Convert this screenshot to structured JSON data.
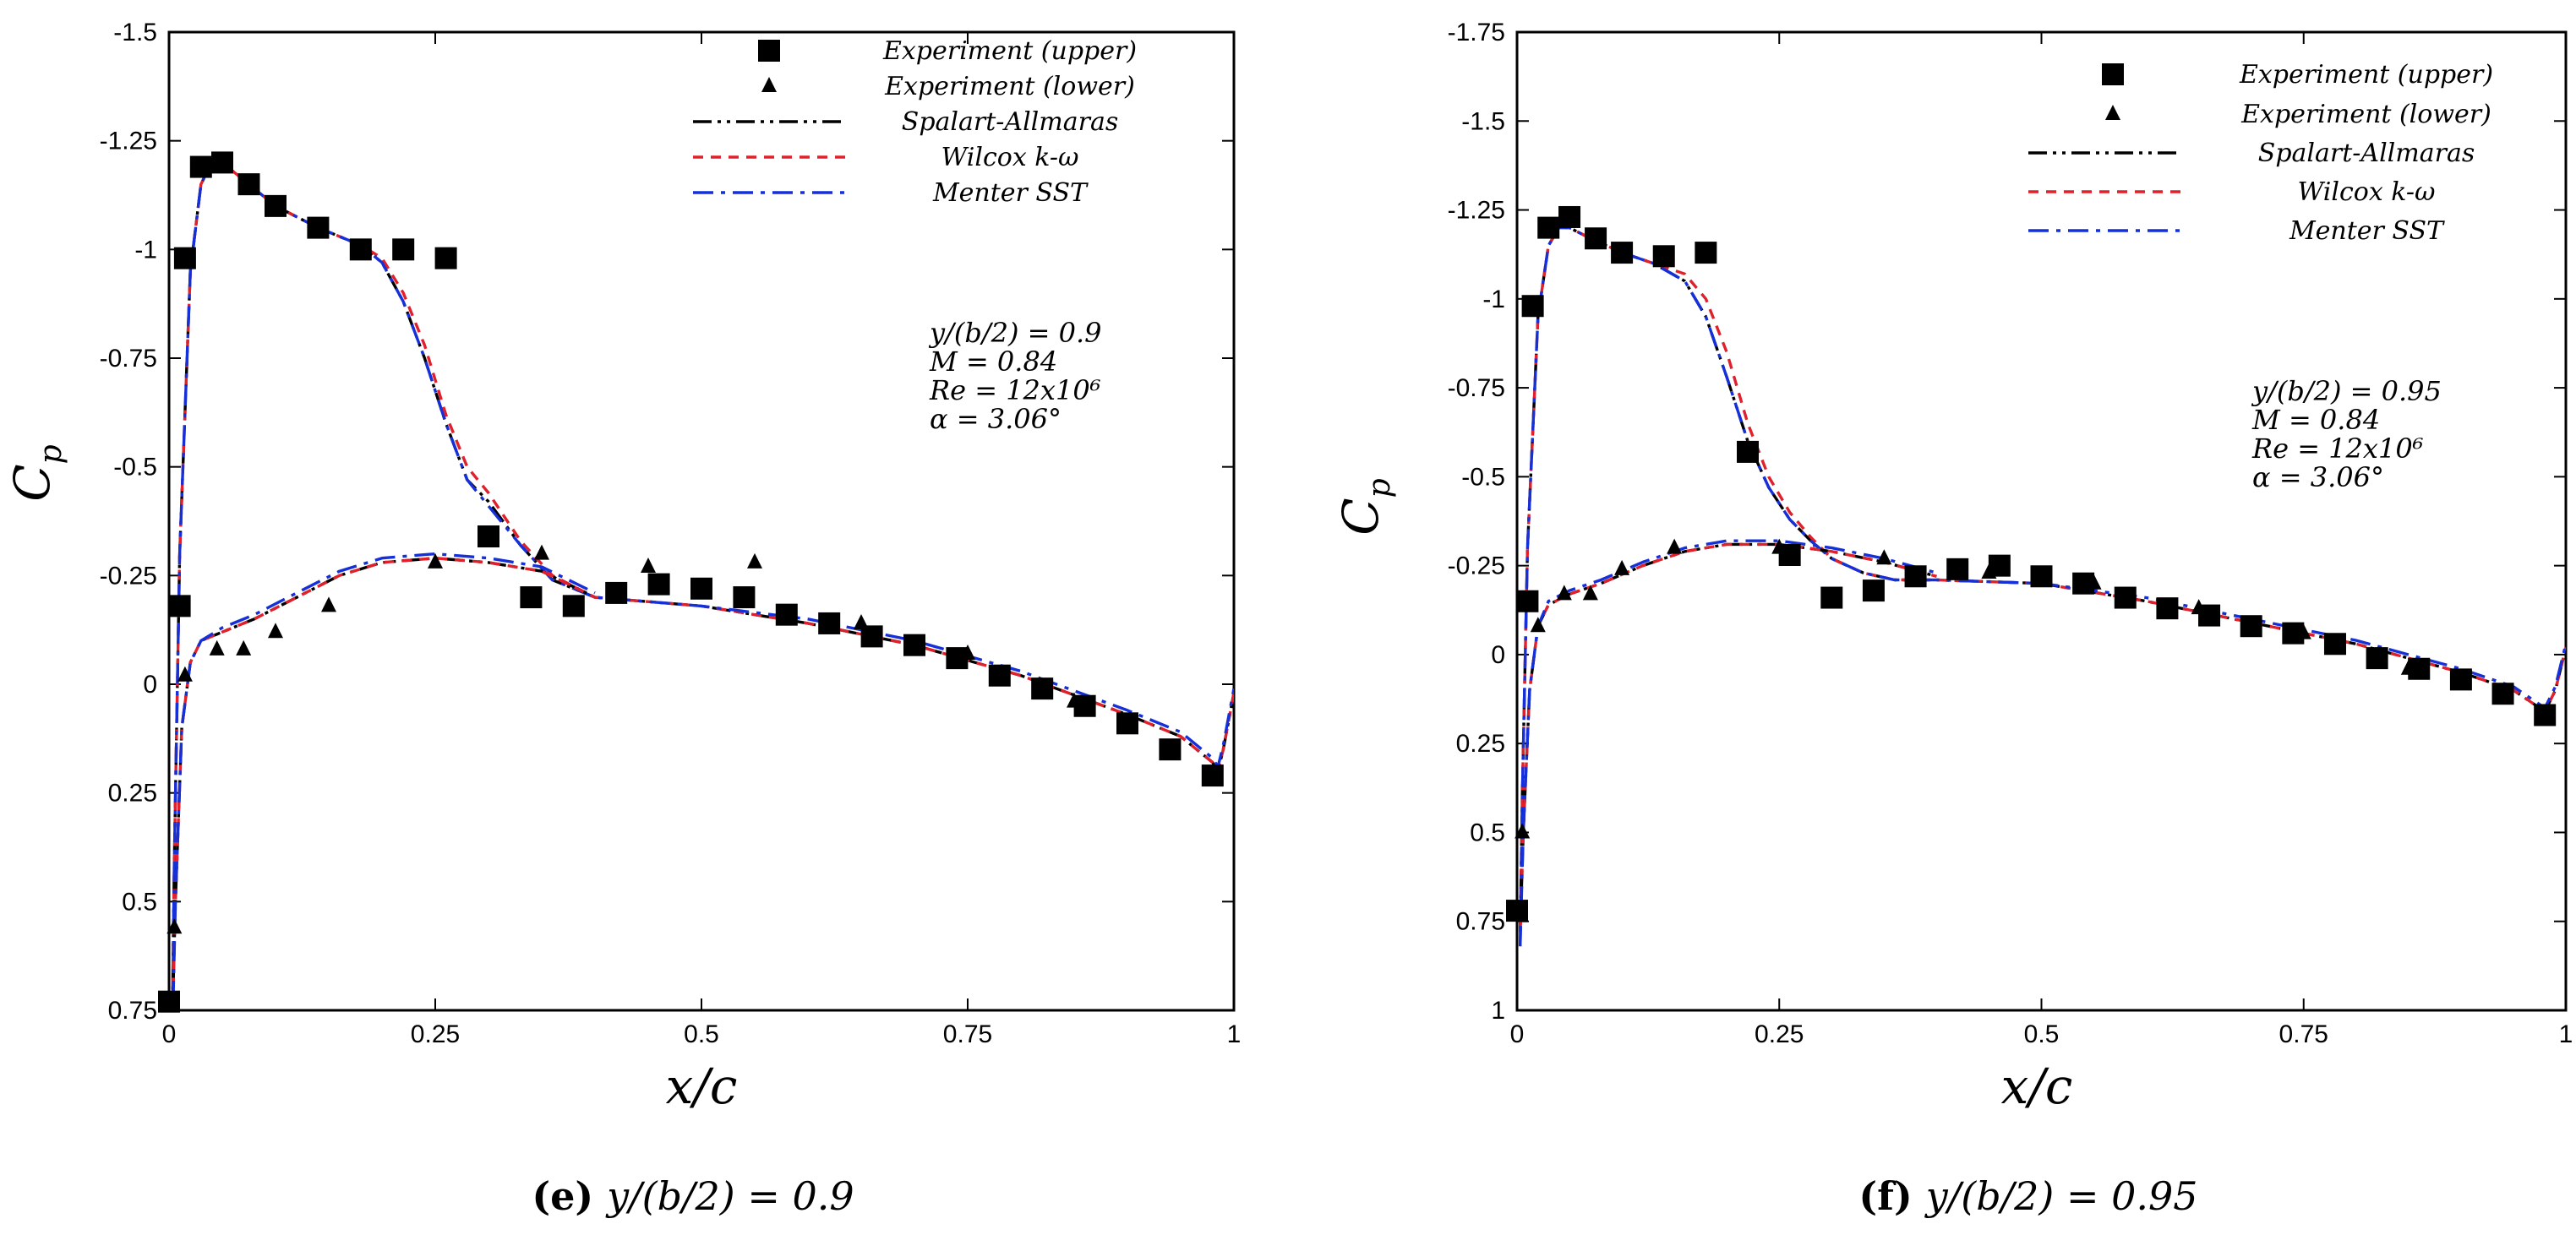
{
  "chart_data": [
    {
      "type": "scatter",
      "panel": "e",
      "caption": {
        "label": "(e)",
        "text": "y/(b/2) = 0.9"
      },
      "xlabel": "x/c",
      "ylabel": "C_p",
      "xlim": [
        0,
        1
      ],
      "ylim": [
        -1.5,
        0.75
      ],
      "y_inverted": true,
      "xticks": [
        0,
        0.25,
        0.5,
        0.75,
        1
      ],
      "xtick_labels": [
        "0",
        "0.25",
        "0.5",
        "0.75",
        "1"
      ],
      "yticks": [
        -1.5,
        -1.25,
        -1,
        -0.75,
        -0.5,
        -0.25,
        0,
        0.25,
        0.5,
        0.75
      ],
      "ytick_labels": [
        "-1.5",
        "-1.25",
        "-1",
        "-0.75",
        "-0.5",
        "-0.25",
        "0",
        "0.25",
        "0.5",
        "0.75"
      ],
      "annotation": [
        "y/(b/2) = 0.9",
        "M = 0.84",
        "Re = 12x10⁶",
        "α = 3.06°"
      ],
      "series": [
        {
          "name": "Experiment (upper)",
          "kind": "marker-square",
          "color": "#000000",
          "x": [
            0,
            0.01,
            0.015,
            0.03,
            0.05,
            0.075,
            0.1,
            0.14,
            0.18,
            0.22,
            0.26,
            0.3,
            0.34,
            0.38,
            0.42,
            0.46,
            0.5,
            0.54,
            0.58,
            0.62,
            0.66,
            0.7,
            0.74,
            0.78,
            0.82,
            0.86,
            0.9,
            0.94,
            0.98
          ],
          "y": [
            0.73,
            -0.18,
            -0.98,
            -1.19,
            -1.2,
            -1.15,
            -1.1,
            -1.05,
            -1.0,
            -1.0,
            -0.98,
            -0.34,
            -0.2,
            -0.18,
            -0.21,
            -0.23,
            -0.22,
            -0.2,
            -0.16,
            -0.14,
            -0.11,
            -0.09,
            -0.06,
            -0.02,
            0.01,
            0.05,
            0.09,
            0.15,
            0.21
          ]
        },
        {
          "name": "Experiment (lower)",
          "kind": "marker-triangle",
          "color": "#000000",
          "x": [
            0.005,
            0.015,
            0.045,
            0.07,
            0.1,
            0.15,
            0.25,
            0.35,
            0.45,
            0.55,
            0.65,
            0.75,
            0.85
          ],
          "y": [
            0.56,
            -0.02,
            -0.08,
            -0.08,
            -0.12,
            -0.18,
            -0.28,
            -0.3,
            -0.27,
            -0.28,
            -0.14,
            -0.07,
            0.04
          ]
        },
        {
          "name": "Spalart-Allmaras",
          "kind": "line",
          "color": "#000000",
          "dash": "dashdotdot",
          "x": [
            0.003,
            0.005,
            0.01,
            0.02,
            0.03,
            0.04,
            0.05,
            0.07,
            0.1,
            0.14,
            0.18,
            0.2,
            0.22,
            0.24,
            0.26,
            0.28,
            0.3,
            0.33,
            0.36,
            0.4,
            0.5,
            0.6,
            0.7,
            0.8,
            0.9,
            0.95,
            0.98,
            0.985,
            0.99,
            1.0
          ],
          "y": [
            0.78,
            0.4,
            -0.3,
            -0.95,
            -1.15,
            -1.2,
            -1.2,
            -1.16,
            -1.1,
            -1.05,
            -1.01,
            -0.97,
            -0.88,
            -0.75,
            -0.6,
            -0.47,
            -0.42,
            -0.32,
            -0.24,
            -0.2,
            -0.18,
            -0.14,
            -0.09,
            -0.02,
            0.07,
            0.12,
            0.18,
            0.2,
            0.15,
            0.02
          ]
        },
        {
          "name": "Wilcox k-ω",
          "kind": "line",
          "color": "#e0202a",
          "dash": "dashed",
          "x": [
            0.003,
            0.005,
            0.01,
            0.02,
            0.03,
            0.04,
            0.05,
            0.07,
            0.1,
            0.14,
            0.18,
            0.2,
            0.22,
            0.24,
            0.26,
            0.28,
            0.3,
            0.33,
            0.36,
            0.4,
            0.5,
            0.6,
            0.7,
            0.8,
            0.9,
            0.95,
            0.98,
            0.985,
            0.99,
            1.0
          ],
          "y": [
            0.78,
            0.4,
            -0.3,
            -0.95,
            -1.15,
            -1.2,
            -1.2,
            -1.16,
            -1.1,
            -1.05,
            -1.01,
            -0.98,
            -0.9,
            -0.78,
            -0.62,
            -0.5,
            -0.44,
            -0.33,
            -0.25,
            -0.2,
            -0.18,
            -0.14,
            -0.09,
            -0.02,
            0.07,
            0.12,
            0.18,
            0.2,
            0.15,
            0.02
          ]
        },
        {
          "name": "Menter SST",
          "kind": "line",
          "color": "#1530d8",
          "dash": "dashdot",
          "x": [
            0.003,
            0.005,
            0.01,
            0.02,
            0.03,
            0.04,
            0.05,
            0.07,
            0.1,
            0.14,
            0.18,
            0.2,
            0.22,
            0.24,
            0.26,
            0.28,
            0.3,
            0.33,
            0.36,
            0.4,
            0.5,
            0.6,
            0.7,
            0.8,
            0.9,
            0.95,
            0.98,
            0.985,
            0.99,
            1.0
          ],
          "y": [
            0.82,
            0.4,
            -0.3,
            -0.95,
            -1.15,
            -1.2,
            -1.2,
            -1.16,
            -1.1,
            -1.05,
            -1.01,
            -0.97,
            -0.88,
            -0.75,
            -0.6,
            -0.47,
            -0.41,
            -0.32,
            -0.24,
            -0.2,
            -0.18,
            -0.15,
            -0.1,
            -0.03,
            0.06,
            0.11,
            0.17,
            0.19,
            0.14,
            0.01
          ]
        },
        {
          "name": "Spalart-Allmaras (lower)",
          "kind": "line",
          "color": "#000000",
          "dash": "dashdotdot",
          "x": [
            0.003,
            0.006,
            0.012,
            0.02,
            0.03,
            0.05,
            0.08,
            0.12,
            0.16,
            0.2,
            0.25,
            0.3,
            0.35,
            0.4
          ],
          "y": [
            0.78,
            0.5,
            0.1,
            -0.05,
            -0.1,
            -0.12,
            -0.15,
            -0.2,
            -0.25,
            -0.28,
            -0.29,
            -0.28,
            -0.26,
            -0.2
          ]
        },
        {
          "name": "Wilcox k-ω (lower)",
          "kind": "line",
          "color": "#e0202a",
          "dash": "dashed",
          "x": [
            0.003,
            0.006,
            0.012,
            0.02,
            0.03,
            0.05,
            0.08,
            0.12,
            0.16,
            0.2,
            0.25,
            0.3,
            0.35,
            0.4
          ],
          "y": [
            0.78,
            0.5,
            0.1,
            -0.05,
            -0.1,
            -0.12,
            -0.15,
            -0.2,
            -0.25,
            -0.28,
            -0.29,
            -0.28,
            -0.26,
            -0.2
          ]
        },
        {
          "name": "Menter SST (lower)",
          "kind": "line",
          "color": "#1530d8",
          "dash": "dashdot",
          "x": [
            0.003,
            0.006,
            0.012,
            0.02,
            0.03,
            0.05,
            0.08,
            0.12,
            0.16,
            0.2,
            0.25,
            0.3,
            0.35,
            0.4
          ],
          "y": [
            0.82,
            0.5,
            0.1,
            -0.05,
            -0.1,
            -0.13,
            -0.16,
            -0.21,
            -0.26,
            -0.29,
            -0.3,
            -0.29,
            -0.27,
            -0.21
          ]
        }
      ]
    },
    {
      "type": "scatter",
      "panel": "f",
      "caption": {
        "label": "(f)",
        "text": "y/(b/2) = 0.95"
      },
      "xlabel": "x/c",
      "ylabel": "C_p",
      "xlim": [
        0,
        1
      ],
      "ylim": [
        -1.75,
        1
      ],
      "y_inverted": true,
      "xticks": [
        0,
        0.25,
        0.5,
        0.75,
        1
      ],
      "xtick_labels": [
        "0",
        "0.25",
        "0.5",
        "0.75",
        "1"
      ],
      "yticks": [
        -1.75,
        -1.5,
        -1.25,
        -1,
        -0.75,
        -0.5,
        -0.25,
        0,
        0.25,
        0.5,
        0.75,
        1
      ],
      "ytick_labels": [
        "-1.75",
        "-1.5",
        "-1.25",
        "-1",
        "-0.75",
        "-0.5",
        "-0.25",
        "0",
        "0.25",
        "0.5",
        "0.75",
        "1"
      ],
      "annotation": [
        "y/(b/2) = 0.95",
        "M = 0.84",
        "Re = 12x10⁶",
        "α = 3.06°"
      ],
      "series": [
        {
          "name": "Experiment (upper)",
          "kind": "marker-square",
          "color": "#000000",
          "x": [
            0,
            0.01,
            0.015,
            0.03,
            0.05,
            0.075,
            0.1,
            0.14,
            0.18,
            0.22,
            0.26,
            0.3,
            0.34,
            0.38,
            0.42,
            0.46,
            0.5,
            0.54,
            0.58,
            0.62,
            0.66,
            0.7,
            0.74,
            0.78,
            0.82,
            0.86,
            0.9,
            0.94,
            0.98
          ],
          "y": [
            0.72,
            -0.15,
            -0.98,
            -1.2,
            -1.23,
            -1.17,
            -1.13,
            -1.12,
            -1.13,
            -0.57,
            -0.28,
            -0.16,
            -0.18,
            -0.22,
            -0.24,
            -0.25,
            -0.22,
            -0.2,
            -0.16,
            -0.13,
            -0.11,
            -0.08,
            -0.06,
            -0.03,
            0.01,
            0.04,
            0.07,
            0.11,
            0.17
          ]
        },
        {
          "name": "Experiment (lower)",
          "kind": "marker-triangle",
          "color": "#000000",
          "x": [
            0.005,
            0.02,
            0.045,
            0.07,
            0.1,
            0.15,
            0.25,
            0.35,
            0.45,
            0.55,
            0.65,
            0.75,
            0.85
          ],
          "y": [
            0.5,
            -0.08,
            -0.17,
            -0.17,
            -0.24,
            -0.3,
            -0.3,
            -0.27,
            -0.23,
            -0.2,
            -0.13,
            -0.06,
            0.04
          ]
        },
        {
          "name": "Spalart-Allmaras",
          "kind": "line",
          "color": "#000000",
          "dash": "dashdotdot",
          "x": [
            0.003,
            0.005,
            0.01,
            0.02,
            0.03,
            0.04,
            0.05,
            0.07,
            0.1,
            0.13,
            0.16,
            0.18,
            0.2,
            0.22,
            0.24,
            0.26,
            0.28,
            0.3,
            0.33,
            0.36,
            0.4,
            0.5,
            0.6,
            0.7,
            0.8,
            0.9,
            0.95,
            0.98,
            0.99,
            1.0
          ],
          "y": [
            0.78,
            0.4,
            -0.3,
            -0.95,
            -1.15,
            -1.2,
            -1.2,
            -1.17,
            -1.13,
            -1.1,
            -1.05,
            -0.95,
            -0.78,
            -0.6,
            -0.47,
            -0.38,
            -0.32,
            -0.27,
            -0.23,
            -0.21,
            -0.21,
            -0.2,
            -0.15,
            -0.09,
            -0.03,
            0.05,
            0.1,
            0.16,
            0.1,
            -0.02
          ]
        },
        {
          "name": "Wilcox k-ω",
          "kind": "line",
          "color": "#e0202a",
          "dash": "dashed",
          "x": [
            0.003,
            0.005,
            0.01,
            0.02,
            0.03,
            0.04,
            0.05,
            0.07,
            0.1,
            0.13,
            0.16,
            0.18,
            0.2,
            0.22,
            0.24,
            0.26,
            0.28,
            0.3,
            0.33,
            0.36,
            0.4,
            0.5,
            0.6,
            0.7,
            0.8,
            0.9,
            0.95,
            0.98,
            0.99,
            1.0
          ],
          "y": [
            0.78,
            0.4,
            -0.3,
            -0.95,
            -1.15,
            -1.2,
            -1.2,
            -1.17,
            -1.13,
            -1.1,
            -1.07,
            -1.0,
            -0.85,
            -0.65,
            -0.5,
            -0.4,
            -0.33,
            -0.27,
            -0.23,
            -0.21,
            -0.21,
            -0.2,
            -0.15,
            -0.09,
            -0.03,
            0.05,
            0.1,
            0.16,
            0.1,
            -0.02
          ]
        },
        {
          "name": "Menter SST",
          "kind": "line",
          "color": "#1530d8",
          "dash": "dashdot",
          "x": [
            0.003,
            0.005,
            0.01,
            0.02,
            0.03,
            0.04,
            0.05,
            0.07,
            0.1,
            0.13,
            0.16,
            0.18,
            0.2,
            0.22,
            0.24,
            0.26,
            0.28,
            0.3,
            0.33,
            0.36,
            0.4,
            0.5,
            0.6,
            0.7,
            0.8,
            0.9,
            0.95,
            0.98,
            0.99,
            1.0
          ],
          "y": [
            0.82,
            0.4,
            -0.3,
            -0.95,
            -1.15,
            -1.2,
            -1.2,
            -1.17,
            -1.13,
            -1.1,
            -1.05,
            -0.95,
            -0.78,
            -0.6,
            -0.47,
            -0.38,
            -0.32,
            -0.27,
            -0.23,
            -0.21,
            -0.21,
            -0.2,
            -0.16,
            -0.1,
            -0.04,
            0.04,
            0.09,
            0.15,
            0.09,
            -0.03
          ]
        },
        {
          "name": "Spalart-Allmaras (lower)",
          "kind": "line",
          "color": "#000000",
          "dash": "dashdotdot",
          "x": [
            0.003,
            0.006,
            0.012,
            0.02,
            0.03,
            0.05,
            0.08,
            0.12,
            0.16,
            0.2,
            0.25,
            0.3,
            0.35,
            0.4
          ],
          "y": [
            0.78,
            0.5,
            0.1,
            -0.08,
            -0.14,
            -0.17,
            -0.2,
            -0.25,
            -0.29,
            -0.31,
            -0.31,
            -0.29,
            -0.26,
            -0.22
          ]
        },
        {
          "name": "Wilcox k-ω (lower)",
          "kind": "line",
          "color": "#e0202a",
          "dash": "dashed",
          "x": [
            0.003,
            0.006,
            0.012,
            0.02,
            0.03,
            0.05,
            0.08,
            0.12,
            0.16,
            0.2,
            0.25,
            0.3,
            0.35,
            0.4
          ],
          "y": [
            0.78,
            0.5,
            0.1,
            -0.08,
            -0.14,
            -0.17,
            -0.2,
            -0.25,
            -0.29,
            -0.31,
            -0.31,
            -0.29,
            -0.26,
            -0.22
          ]
        },
        {
          "name": "Menter SST (lower)",
          "kind": "line",
          "color": "#1530d8",
          "dash": "dashdot",
          "x": [
            0.003,
            0.006,
            0.012,
            0.02,
            0.03,
            0.05,
            0.08,
            0.12,
            0.16,
            0.2,
            0.25,
            0.3,
            0.35,
            0.4
          ],
          "y": [
            0.82,
            0.5,
            0.1,
            -0.08,
            -0.15,
            -0.18,
            -0.21,
            -0.26,
            -0.3,
            -0.32,
            -0.32,
            -0.3,
            -0.27,
            -0.23
          ]
        }
      ]
    }
  ]
}
